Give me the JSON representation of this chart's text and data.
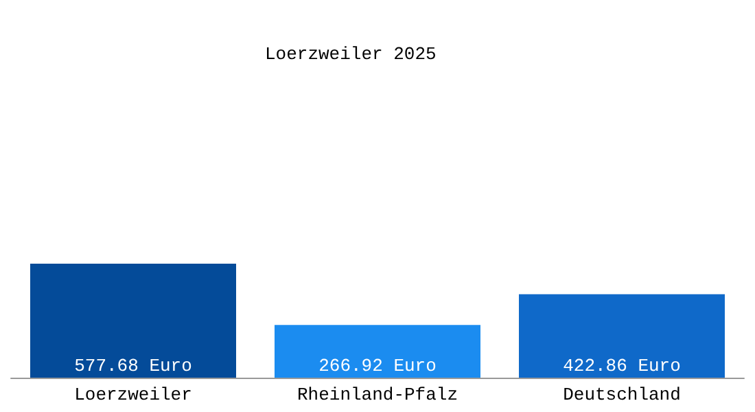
{
  "chart_data": {
    "type": "bar",
    "title": "Loerzweiler 2025",
    "categories": [
      "Loerzweiler",
      "Rheinland-Pfalz",
      "Deutschland"
    ],
    "values": [
      577.68,
      266.92,
      422.86
    ],
    "colors": [
      "#044b99",
      "#1b8cf0",
      "#0f69c9"
    ],
    "value_labels": [
      "577.68 Euro",
      "266.92 Euro",
      "422.86 Euro"
    ]
  }
}
